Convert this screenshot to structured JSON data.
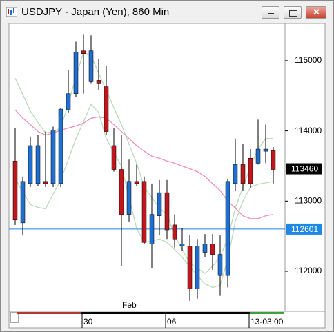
{
  "chart_data": {
    "type": "candlestick",
    "title": "USDJPY - Japan (Yen), 860 Min",
    "categories": [
      null,
      null,
      null,
      null,
      null,
      null,
      null,
      null,
      null,
      "30",
      null,
      null,
      null,
      null,
      null,
      null,
      null,
      null,
      null,
      null,
      "06",
      null,
      null,
      null,
      null,
      null,
      null,
      null,
      null,
      null,
      null,
      "13-03:00",
      null,
      null,
      null
    ],
    "month_label": "Feb",
    "candles": {
      "open": [
        113570,
        112690,
        113250,
        113250,
        113280,
        113250,
        113250,
        114300,
        114530,
        115140,
        114700,
        114720,
        114630,
        113790,
        113450,
        112810,
        113280,
        113280,
        112390,
        112790,
        113120,
        112660,
        112360,
        112360,
        111750,
        112270,
        112390,
        111940,
        111940,
        113250,
        113520,
        113610,
        113540,
        113710,
        113720
      ],
      "high": [
        114040,
        113350,
        113920,
        113940,
        113990,
        114060,
        114330,
        114870,
        115270,
        115380,
        115360,
        115020,
        114920,
        114040,
        113940,
        113590,
        113520,
        113350,
        113250,
        113300,
        113300,
        112810,
        112610,
        112510,
        112460,
        112530,
        112530,
        112510,
        113320,
        113890,
        113810,
        113740,
        114160,
        114090,
        113770
      ],
      "low": [
        112660,
        112510,
        113200,
        113220,
        113200,
        113200,
        113200,
        114260,
        114480,
        114530,
        114680,
        114580,
        113940,
        113420,
        112070,
        112710,
        113220,
        112390,
        112040,
        112510,
        112460,
        112340,
        112290,
        111580,
        111610,
        112200,
        112020,
        111650,
        111770,
        113150,
        113150,
        113180,
        113520,
        113540,
        113250
      ],
      "close": [
        112730,
        113280,
        113790,
        113790,
        113250,
        114010,
        114310,
        114530,
        115120,
        115100,
        115140,
        114680,
        113990,
        113450,
        112810,
        113280,
        113250,
        112410,
        112810,
        113120,
        112590,
        112460,
        112390,
        111750,
        112360,
        112390,
        112240,
        112240,
        113280,
        113520,
        113250,
        113250,
        113740,
        113740,
        113450
      ],
      "up_color": "#1f6fd1",
      "down_color": "#c0171c"
    },
    "lines": [
      {
        "color": "#b9dab9",
        "values": [
          114750,
          114520,
          114280,
          114120,
          113970,
          113990,
          114040,
          114380,
          114770,
          115120,
          115070,
          114820,
          114580,
          114330,
          114090,
          113810,
          113540,
          113200,
          113050,
          112900,
          112810,
          112510,
          112310,
          112120,
          112040,
          111970,
          112070,
          112210,
          112460,
          112900,
          113200,
          113500,
          113740,
          113890,
          113890
        ]
      },
      {
        "color": "#b9dab9",
        "values": [
          113320,
          113130,
          112950,
          112910,
          112890,
          113100,
          113300,
          113590,
          113890,
          114130,
          114380,
          114260,
          113890,
          113690,
          113500,
          113050,
          112610,
          112410,
          112430,
          112460,
          112410,
          112310,
          112200,
          112070,
          111940,
          111820,
          111770,
          111800,
          112170,
          112710,
          113000,
          113200,
          113240,
          113260,
          113280
        ]
      },
      {
        "color": "#f08cb8",
        "values": [
          114300,
          114180,
          114090,
          113990,
          113940,
          113970,
          114010,
          114040,
          114070,
          114110,
          114180,
          114200,
          114180,
          114090,
          113990,
          113890,
          113790,
          113710,
          113640,
          113610,
          113570,
          113540,
          113500,
          113460,
          113420,
          113350,
          113250,
          113150,
          113000,
          112900,
          112790,
          112750,
          112750,
          112790,
          112810
        ]
      }
    ],
    "last_price": 113460,
    "reference_line": {
      "value": 112601,
      "color": "#1e88e5"
    },
    "ylim": [
      111430,
      115530
    ],
    "yticks": [
      112000,
      113000,
      114000,
      115000
    ]
  }
}
